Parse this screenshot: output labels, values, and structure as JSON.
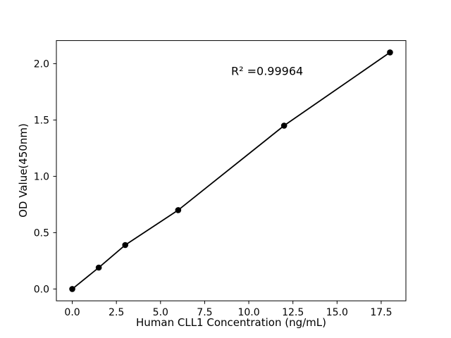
{
  "chart_data": {
    "type": "line",
    "title": "",
    "xlabel": "Human CLL1 Concentration (ng/mL)",
    "ylabel": "OD Value(450nm)",
    "series": [
      {
        "name": "standard curve",
        "x": [
          0,
          1.5,
          3,
          6,
          12,
          18
        ],
        "y": [
          0.0,
          0.19,
          0.39,
          0.7,
          1.45,
          2.1
        ]
      }
    ],
    "annotation": {
      "text": "R² =0.99964",
      "x": 9.0,
      "y": 1.9
    },
    "xticks": [
      0.0,
      2.5,
      5.0,
      7.5,
      10.0,
      12.5,
      15.0,
      17.5
    ],
    "yticks": [
      0.0,
      0.5,
      1.0,
      1.5,
      2.0
    ],
    "xlim": [
      -0.9,
      18.9
    ],
    "ylim": [
      -0.105,
      2.205
    ],
    "grid": false,
    "legend": "none",
    "marker": "circle",
    "line_color": "#000000",
    "marker_color": "#000000",
    "tick_color": "#000000",
    "background": "#ffffff"
  }
}
